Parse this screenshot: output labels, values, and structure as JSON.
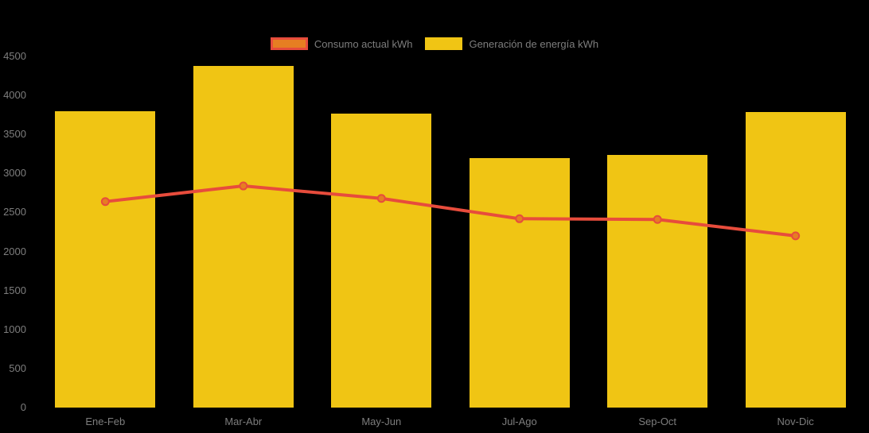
{
  "chart_data": {
    "type": "bar",
    "subtype": "combo-bar-line",
    "title": "",
    "xlabel": "",
    "ylabel": "",
    "categories": [
      "Ene-Feb",
      "Mar-Abr",
      "May-Jun",
      "Jul-Ago",
      "Sep-Oct",
      "Nov-Dic"
    ],
    "series": [
      {
        "name": "Consumo actual kWh",
        "type": "line",
        "color": "#e74c3c",
        "marker_fill": "#e67e22",
        "values": [
          2640,
          2840,
          2680,
          2420,
          2410,
          2200
        ]
      },
      {
        "name": "Generación de energía kWh",
        "type": "bar",
        "color": "#f0c514",
        "values": [
          3800,
          4380,
          3770,
          3200,
          3240,
          3790
        ]
      }
    ],
    "ylim": [
      0,
      4500
    ],
    "ytick_step": 500,
    "yticks": [
      0,
      500,
      1000,
      1500,
      2000,
      2500,
      3000,
      3500,
      4000,
      4500
    ],
    "grid": false,
    "legend_position": "top",
    "background": "#000000",
    "label_color": "#7d7d7d"
  }
}
